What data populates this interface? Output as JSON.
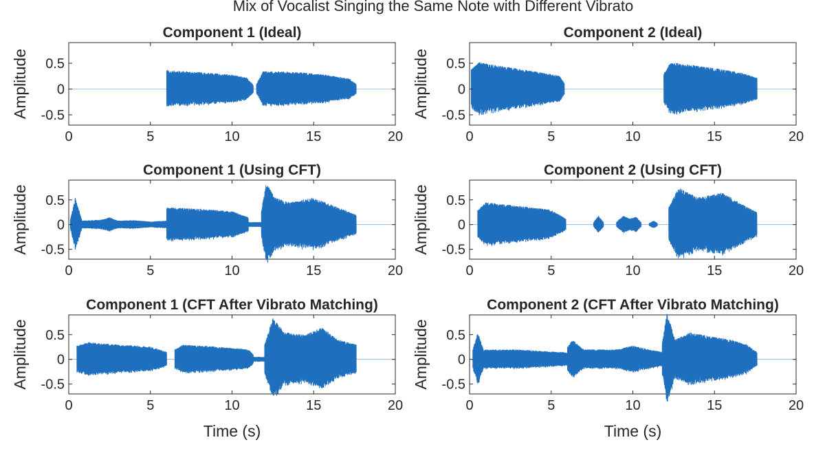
{
  "figure": {
    "title": "Mix of Vocalist Singing the Same Note with Different Vibrato",
    "line_color": "#1f6fbf"
  },
  "chart_data": [
    {
      "type": "line",
      "title": "Component 1 (Ideal)",
      "xlabel": "",
      "ylabel": "Amplitude",
      "xlim": [
        0,
        20
      ],
      "ylim": [
        -0.7,
        0.9
      ],
      "xticks": [
        "0",
        "5",
        "10",
        "15",
        "20"
      ],
      "yticks": [
        "0.5",
        "0",
        "-0.5"
      ],
      "segments": [
        {
          "start": 6.0,
          "end": 11.3,
          "env": [
            [
              6.0,
              0.38
            ],
            [
              6.2,
              0.36
            ],
            [
              8.0,
              0.33
            ],
            [
              10.0,
              0.28
            ],
            [
              10.9,
              0.22
            ],
            [
              11.3,
              0.08
            ]
          ]
        },
        {
          "start": 11.5,
          "end": 17.6,
          "env": [
            [
              11.5,
              0.1
            ],
            [
              11.9,
              0.35
            ],
            [
              14.0,
              0.33
            ],
            [
              16.0,
              0.27
            ],
            [
              17.2,
              0.2
            ],
            [
              17.6,
              0.1
            ]
          ]
        }
      ]
    },
    {
      "type": "line",
      "title": "Component 2 (Ideal)",
      "xlabel": "",
      "ylabel": "Amplitude",
      "xlim": [
        0,
        20
      ],
      "ylim": [
        -0.7,
        0.9
      ],
      "xticks": [
        "0",
        "5",
        "10",
        "15",
        "20"
      ],
      "yticks": [
        "0.5",
        "0",
        "-0.5"
      ],
      "segments": [
        {
          "start": 0.1,
          "end": 5.8,
          "env": [
            [
              0.1,
              0.4
            ],
            [
              0.6,
              0.52
            ],
            [
              2.5,
              0.42
            ],
            [
              4.5,
              0.32
            ],
            [
              5.5,
              0.26
            ],
            [
              5.8,
              0.12
            ]
          ]
        },
        {
          "start": 11.9,
          "end": 17.6,
          "env": [
            [
              11.9,
              0.3
            ],
            [
              12.3,
              0.52
            ],
            [
              14.5,
              0.43
            ],
            [
              16.5,
              0.33
            ],
            [
              17.6,
              0.22
            ]
          ]
        }
      ]
    },
    {
      "type": "line",
      "title": "Component 1 (Using CFT)",
      "xlabel": "",
      "ylabel": "Amplitude",
      "xlim": [
        0,
        20
      ],
      "ylim": [
        -0.7,
        0.9
      ],
      "xticks": [
        "0",
        "5",
        "10",
        "15",
        "20"
      ],
      "yticks": [
        "0.5",
        "0",
        "-0.5"
      ],
      "segments": [
        {
          "start": 0.1,
          "end": 0.8,
          "env": [
            [
              0.1,
              0.1
            ],
            [
              0.4,
              0.55
            ],
            [
              0.8,
              0.1
            ]
          ]
        },
        {
          "start": 0.8,
          "end": 6.0,
          "env": [
            [
              0.8,
              0.08
            ],
            [
              2.0,
              0.1
            ],
            [
              2.5,
              0.15
            ],
            [
              3.0,
              0.08
            ],
            [
              4.0,
              0.09
            ],
            [
              5.0,
              0.06
            ],
            [
              6.0,
              0.08
            ]
          ]
        },
        {
          "start": 6.0,
          "end": 11.0,
          "env": [
            [
              6.0,
              0.35
            ],
            [
              8.0,
              0.32
            ],
            [
              10.0,
              0.27
            ],
            [
              11.0,
              0.15
            ]
          ]
        },
        {
          "start": 11.0,
          "end": 11.8,
          "env": [
            [
              11.0,
              0.05
            ],
            [
              11.8,
              0.05
            ]
          ]
        },
        {
          "start": 11.8,
          "end": 17.6,
          "env": [
            [
              11.8,
              0.3
            ],
            [
              12.1,
              0.85
            ],
            [
              12.6,
              0.55
            ],
            [
              13.5,
              0.45
            ],
            [
              15.0,
              0.55
            ],
            [
              16.5,
              0.35
            ],
            [
              17.6,
              0.2
            ]
          ]
        }
      ]
    },
    {
      "type": "line",
      "title": "Component 2 (Using CFT)",
      "xlabel": "",
      "ylabel": "Amplitude",
      "xlim": [
        0,
        20
      ],
      "ylim": [
        -0.7,
        0.9
      ],
      "xticks": [
        "0",
        "5",
        "10",
        "15",
        "20"
      ],
      "yticks": [
        "0.5",
        "0",
        "-0.5"
      ],
      "segments": [
        {
          "start": 0.5,
          "end": 5.9,
          "env": [
            [
              0.5,
              0.3
            ],
            [
              1.0,
              0.45
            ],
            [
              3.0,
              0.38
            ],
            [
              5.0,
              0.3
            ],
            [
              5.9,
              0.12
            ]
          ]
        },
        {
          "start": 7.6,
          "end": 8.2,
          "env": [
            [
              7.6,
              0.05
            ],
            [
              7.9,
              0.18
            ],
            [
              8.2,
              0.05
            ]
          ]
        },
        {
          "start": 9.0,
          "end": 10.5,
          "env": [
            [
              9.0,
              0.05
            ],
            [
              9.4,
              0.18
            ],
            [
              9.8,
              0.12
            ],
            [
              10.2,
              0.16
            ],
            [
              10.5,
              0.05
            ]
          ]
        },
        {
          "start": 11.0,
          "end": 11.5,
          "env": [
            [
              11.0,
              0.03
            ],
            [
              11.3,
              0.08
            ],
            [
              11.5,
              0.03
            ]
          ]
        },
        {
          "start": 12.2,
          "end": 17.6,
          "env": [
            [
              12.2,
              0.35
            ],
            [
              12.8,
              0.75
            ],
            [
              14.0,
              0.55
            ],
            [
              15.5,
              0.65
            ],
            [
              16.5,
              0.45
            ],
            [
              17.6,
              0.25
            ]
          ]
        }
      ]
    },
    {
      "type": "line",
      "title": "Component 1 (CFT After Vibrato Matching)",
      "xlabel": "Time (s)",
      "ylabel": "Amplitude",
      "xlim": [
        0,
        20
      ],
      "ylim": [
        -0.7,
        0.9
      ],
      "xticks": [
        "0",
        "5",
        "10",
        "15",
        "20"
      ],
      "yticks": [
        "0.5",
        "0",
        "-0.5"
      ],
      "segments": [
        {
          "start": 0.5,
          "end": 6.0,
          "env": [
            [
              0.5,
              0.28
            ],
            [
              1.2,
              0.35
            ],
            [
              3.0,
              0.3
            ],
            [
              5.0,
              0.26
            ],
            [
              6.0,
              0.15
            ]
          ]
        },
        {
          "start": 6.5,
          "end": 11.3,
          "env": [
            [
              6.5,
              0.2
            ],
            [
              7.0,
              0.3
            ],
            [
              9.0,
              0.26
            ],
            [
              11.0,
              0.2
            ],
            [
              11.3,
              0.1
            ]
          ]
        },
        {
          "start": 11.3,
          "end": 12.0,
          "env": [
            [
              11.3,
              0.05
            ],
            [
              12.0,
              0.05
            ]
          ]
        },
        {
          "start": 12.0,
          "end": 17.6,
          "env": [
            [
              12.0,
              0.3
            ],
            [
              12.5,
              0.85
            ],
            [
              13.2,
              0.55
            ],
            [
              14.5,
              0.5
            ],
            [
              15.5,
              0.65
            ],
            [
              16.5,
              0.4
            ],
            [
              17.6,
              0.3
            ]
          ]
        }
      ]
    },
    {
      "type": "line",
      "title": "Component 2 (CFT After Vibrato Matching)",
      "xlabel": "Time (s)",
      "ylabel": "Amplitude",
      "xlim": [
        0,
        20
      ],
      "ylim": [
        -0.7,
        0.9
      ],
      "xticks": [
        "0",
        "5",
        "10",
        "15",
        "20"
      ],
      "yticks": [
        "0.5",
        "0",
        "-0.5"
      ],
      "segments": [
        {
          "start": 0.2,
          "end": 0.9,
          "env": [
            [
              0.2,
              0.2
            ],
            [
              0.5,
              0.55
            ],
            [
              0.9,
              0.15
            ]
          ]
        },
        {
          "start": 0.9,
          "end": 6.0,
          "env": [
            [
              0.9,
              0.2
            ],
            [
              3.0,
              0.2
            ],
            [
              5.0,
              0.16
            ],
            [
              6.0,
              0.14
            ]
          ]
        },
        {
          "start": 6.0,
          "end": 11.8,
          "env": [
            [
              6.0,
              0.25
            ],
            [
              6.3,
              0.4
            ],
            [
              7.0,
              0.2
            ],
            [
              9.0,
              0.2
            ],
            [
              10.0,
              0.28
            ],
            [
              11.0,
              0.2
            ],
            [
              11.8,
              0.15
            ]
          ]
        },
        {
          "start": 11.8,
          "end": 17.6,
          "env": [
            [
              11.8,
              0.35
            ],
            [
              12.1,
              0.95
            ],
            [
              12.6,
              0.4
            ],
            [
              13.5,
              0.55
            ],
            [
              15.0,
              0.45
            ],
            [
              16.0,
              0.4
            ],
            [
              17.0,
              0.3
            ],
            [
              17.6,
              0.15
            ]
          ]
        }
      ]
    }
  ]
}
